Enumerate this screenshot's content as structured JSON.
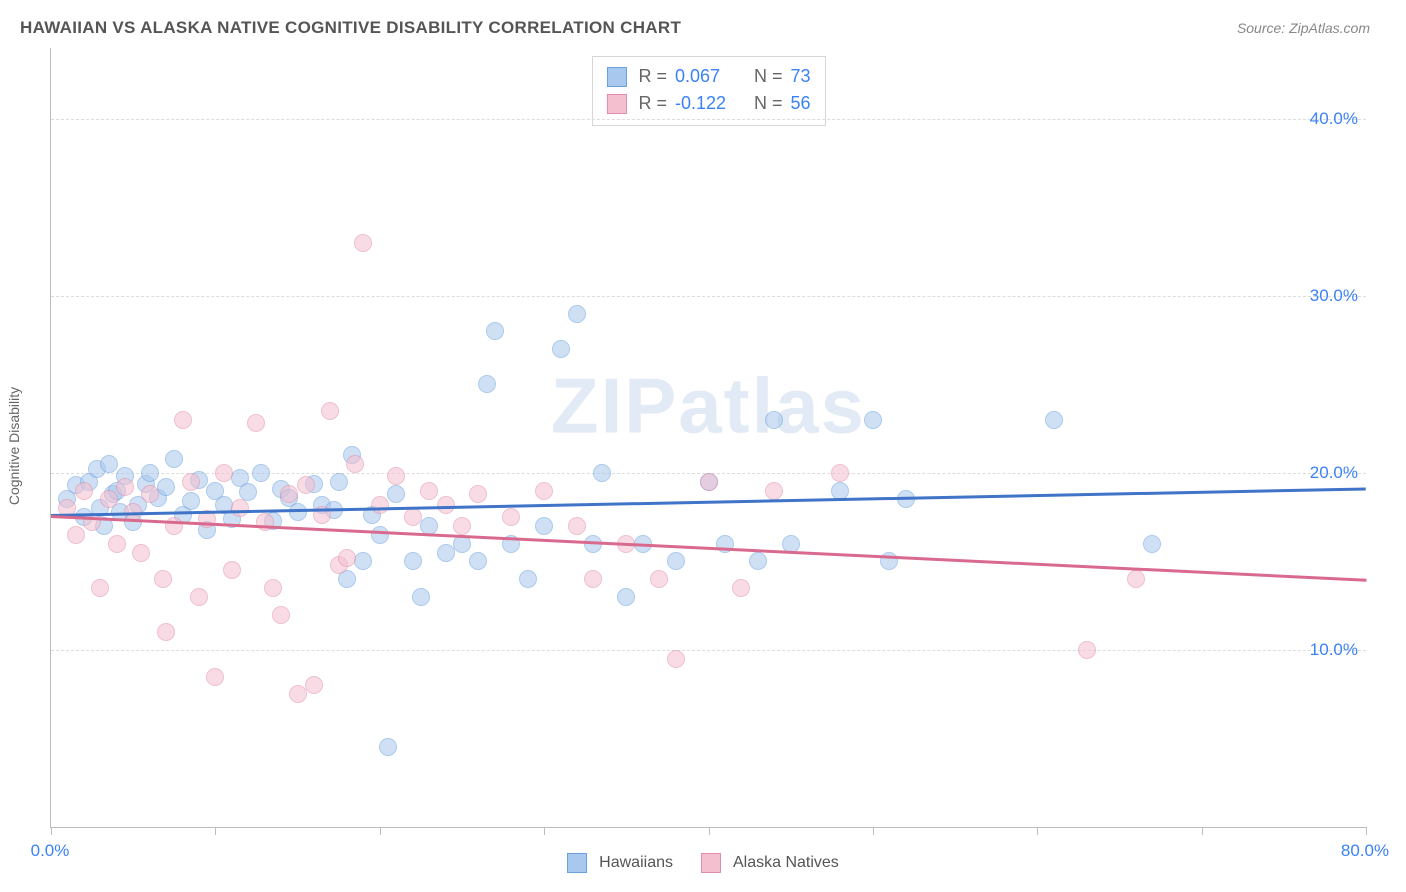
{
  "title": "HAWAIIAN VS ALASKA NATIVE COGNITIVE DISABILITY CORRELATION CHART",
  "source": "Source: ZipAtlas.com",
  "ylabel": "Cognitive Disability",
  "watermark": "ZIPatlas",
  "chart": {
    "type": "scatter",
    "xlim": [
      0,
      80
    ],
    "ylim": [
      0,
      44
    ],
    "y_gridlines": [
      10,
      20,
      30,
      40
    ],
    "y_tick_labels": [
      "10.0%",
      "20.0%",
      "30.0%",
      "40.0%"
    ],
    "x_ticks": [
      0,
      10,
      20,
      30,
      40,
      50,
      60,
      70,
      80
    ],
    "x_tick_labels": {
      "0": "0.0%",
      "80": "80.0%"
    },
    "grid_color": "#dcdcdc",
    "axis_color": "#bdbdbd",
    "background": "#ffffff",
    "label_color": "#3b82f6",
    "label_fontsize": 17,
    "marker_size": 18,
    "marker_opacity": 0.55,
    "series": [
      {
        "name": "Hawaiians",
        "fill": "#a8c8ee",
        "stroke": "#6aa0dd",
        "trend_color": "#3f74c8",
        "trend": {
          "x1": 0,
          "y1": 17.7,
          "x2": 80,
          "y2": 19.2
        },
        "R": "0.067",
        "N": "73",
        "points": [
          [
            1,
            18.5
          ],
          [
            1.5,
            19.3
          ],
          [
            2,
            17.5
          ],
          [
            2.3,
            19.5
          ],
          [
            2.8,
            20.2
          ],
          [
            3,
            18
          ],
          [
            3.2,
            17
          ],
          [
            3.5,
            20.5
          ],
          [
            3.8,
            18.8
          ],
          [
            4,
            19
          ],
          [
            4.2,
            17.8
          ],
          [
            4.5,
            19.8
          ],
          [
            5,
            17.2
          ],
          [
            5.3,
            18.2
          ],
          [
            5.8,
            19.4
          ],
          [
            6,
            20
          ],
          [
            6.5,
            18.6
          ],
          [
            7,
            19.2
          ],
          [
            7.5,
            20.8
          ],
          [
            8,
            17.6
          ],
          [
            8.5,
            18.4
          ],
          [
            9,
            19.6
          ],
          [
            9.5,
            16.8
          ],
          [
            10,
            19
          ],
          [
            10.5,
            18.2
          ],
          [
            11,
            17.4
          ],
          [
            11.5,
            19.7
          ],
          [
            12,
            18.9
          ],
          [
            12.8,
            20
          ],
          [
            13.5,
            17.3
          ],
          [
            14,
            19.1
          ],
          [
            14.5,
            18.6
          ],
          [
            15,
            17.8
          ],
          [
            16,
            19.4
          ],
          [
            16.5,
            18.2
          ],
          [
            17.2,
            17.9
          ],
          [
            17.5,
            19.5
          ],
          [
            18,
            14
          ],
          [
            18.3,
            21
          ],
          [
            19,
            15
          ],
          [
            19.5,
            17.6
          ],
          [
            20,
            16.5
          ],
          [
            20.5,
            4.5
          ],
          [
            21,
            18.8
          ],
          [
            22,
            15
          ],
          [
            22.5,
            13
          ],
          [
            23,
            17
          ],
          [
            24,
            15.5
          ],
          [
            25,
            16
          ],
          [
            26,
            15
          ],
          [
            26.5,
            25
          ],
          [
            27,
            28
          ],
          [
            28,
            16
          ],
          [
            29,
            14
          ],
          [
            30,
            17
          ],
          [
            31,
            27
          ],
          [
            32,
            29
          ],
          [
            33,
            16
          ],
          [
            33.5,
            20
          ],
          [
            35,
            13
          ],
          [
            36,
            16
          ],
          [
            38,
            15
          ],
          [
            40,
            19.5
          ],
          [
            41,
            16
          ],
          [
            43,
            15
          ],
          [
            44,
            23
          ],
          [
            45,
            16
          ],
          [
            48,
            19
          ],
          [
            50,
            23
          ],
          [
            51,
            15
          ],
          [
            52,
            18.5
          ],
          [
            61,
            23
          ],
          [
            67,
            16
          ]
        ]
      },
      {
        "name": "Alaska Natives",
        "fill": "#f4bfce",
        "stroke": "#e38ea8",
        "trend_color": "#d96a8d",
        "trend": {
          "x1": 0,
          "y1": 17.6,
          "x2": 80,
          "y2": 14.0
        },
        "R": "-0.122",
        "N": "56",
        "points": [
          [
            1,
            18
          ],
          [
            1.5,
            16.5
          ],
          [
            2,
            19
          ],
          [
            2.5,
            17.2
          ],
          [
            3,
            13.5
          ],
          [
            3.5,
            18.5
          ],
          [
            4,
            16
          ],
          [
            4.5,
            19.2
          ],
          [
            5,
            17.8
          ],
          [
            5.5,
            15.5
          ],
          [
            6,
            18.8
          ],
          [
            6.8,
            14
          ],
          [
            7,
            11
          ],
          [
            7.5,
            17
          ],
          [
            8,
            23
          ],
          [
            8.5,
            19.5
          ],
          [
            9,
            13
          ],
          [
            9.5,
            17.4
          ],
          [
            10,
            8.5
          ],
          [
            10.5,
            20
          ],
          [
            11,
            14.5
          ],
          [
            11.5,
            18
          ],
          [
            12.5,
            22.8
          ],
          [
            13,
            17.2
          ],
          [
            13.5,
            13.5
          ],
          [
            14,
            12
          ],
          [
            14.5,
            18.8
          ],
          [
            15,
            7.5
          ],
          [
            15.5,
            19.3
          ],
          [
            16,
            8
          ],
          [
            16.5,
            17.6
          ],
          [
            17,
            23.5
          ],
          [
            17.5,
            14.8
          ],
          [
            18,
            15.2
          ],
          [
            18.5,
            20.5
          ],
          [
            19,
            33
          ],
          [
            20,
            18.2
          ],
          [
            21,
            19.8
          ],
          [
            22,
            17.5
          ],
          [
            23,
            19
          ],
          [
            24,
            18.2
          ],
          [
            25,
            17
          ],
          [
            26,
            18.8
          ],
          [
            28,
            17.5
          ],
          [
            30,
            19
          ],
          [
            32,
            17
          ],
          [
            33,
            14
          ],
          [
            35,
            16
          ],
          [
            37,
            14
          ],
          [
            38,
            9.5
          ],
          [
            40,
            19.5
          ],
          [
            42,
            13.5
          ],
          [
            44,
            19
          ],
          [
            48,
            20
          ],
          [
            63,
            10
          ],
          [
            66,
            14
          ]
        ]
      }
    ]
  },
  "legend": {
    "items": [
      "Hawaiians",
      "Alaska Natives"
    ]
  }
}
